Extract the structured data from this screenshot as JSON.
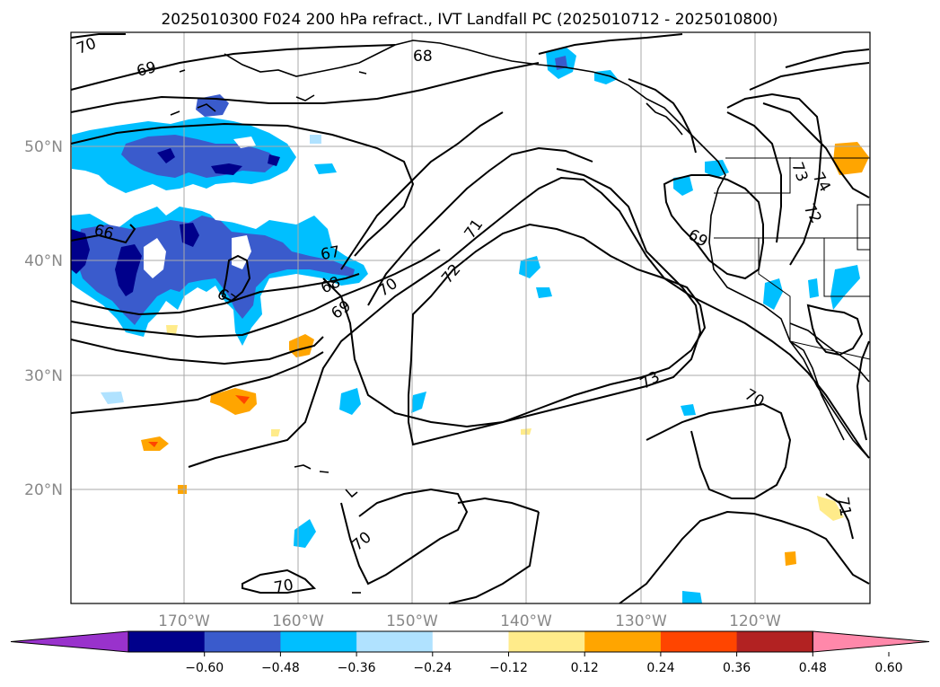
{
  "map": {
    "title": "2025010300 F024 200 hPa refract., IVT Landfall PC (2025010712 - 2025010800)",
    "lat_labels": [
      "50°N",
      "40°N",
      "30°N",
      "20°N"
    ],
    "lon_labels": [
      "170°W",
      "160°W",
      "150°W",
      "140°W",
      "130°W",
      "120°W"
    ],
    "contour_labels": [
      "70",
      "69",
      "68",
      "66",
      "67",
      "68",
      "67",
      "70",
      "69",
      "71",
      "72",
      "73",
      "74",
      "72",
      "69",
      "70",
      "73",
      "70",
      "71",
      "70",
      "70"
    ]
  },
  "colorbar": {
    "colors": [
      "#9932cc",
      "#00008b",
      "#3a5bcc",
      "#00bfff",
      "#b0e2ff",
      "#ffffff",
      "#ffeb8a",
      "#ffa500",
      "#ff4500",
      "#b22222",
      "#ff88aa"
    ],
    "tick_labels": [
      "−0.60",
      "−0.48",
      "−0.36",
      "−0.24",
      "−0.12",
      "0.12",
      "0.24",
      "0.36",
      "0.48",
      "0.60"
    ]
  }
}
